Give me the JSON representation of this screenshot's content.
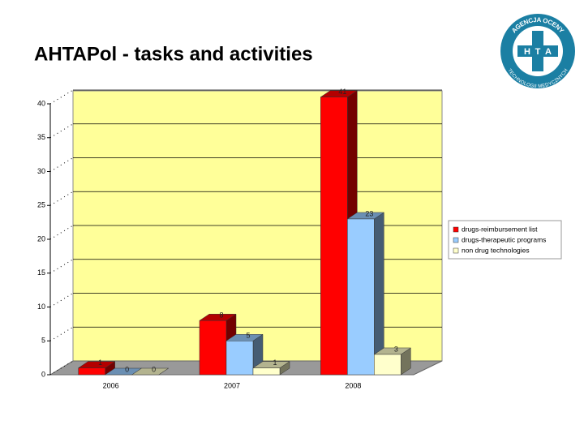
{
  "chart_data": {
    "type": "bar3d",
    "title": "AHTAPol - tasks and activities",
    "categories": [
      "2006",
      "2007",
      "2008"
    ],
    "series": [
      {
        "name": "drugs-reimbursement list",
        "color": "#ff0000",
        "values": [
          1,
          8,
          41
        ]
      },
      {
        "name": "drugs-therapeutic programs",
        "color": "#99ccff",
        "values": [
          0,
          5,
          23
        ]
      },
      {
        "name": "non drug technologies",
        "color": "#ffffcc",
        "values": [
          0,
          1,
          3
        ]
      }
    ],
    "ylim": [
      0,
      40
    ],
    "yticks": [
      0,
      5,
      10,
      15,
      20,
      25,
      30,
      35,
      40
    ],
    "grid": true,
    "legend": "right"
  },
  "logo": {
    "top": "AGENCJA OCENY",
    "bottom": "TECHNOLOGII MEDYCZNYCH",
    "h": "H",
    "t": "T",
    "a": "A"
  }
}
